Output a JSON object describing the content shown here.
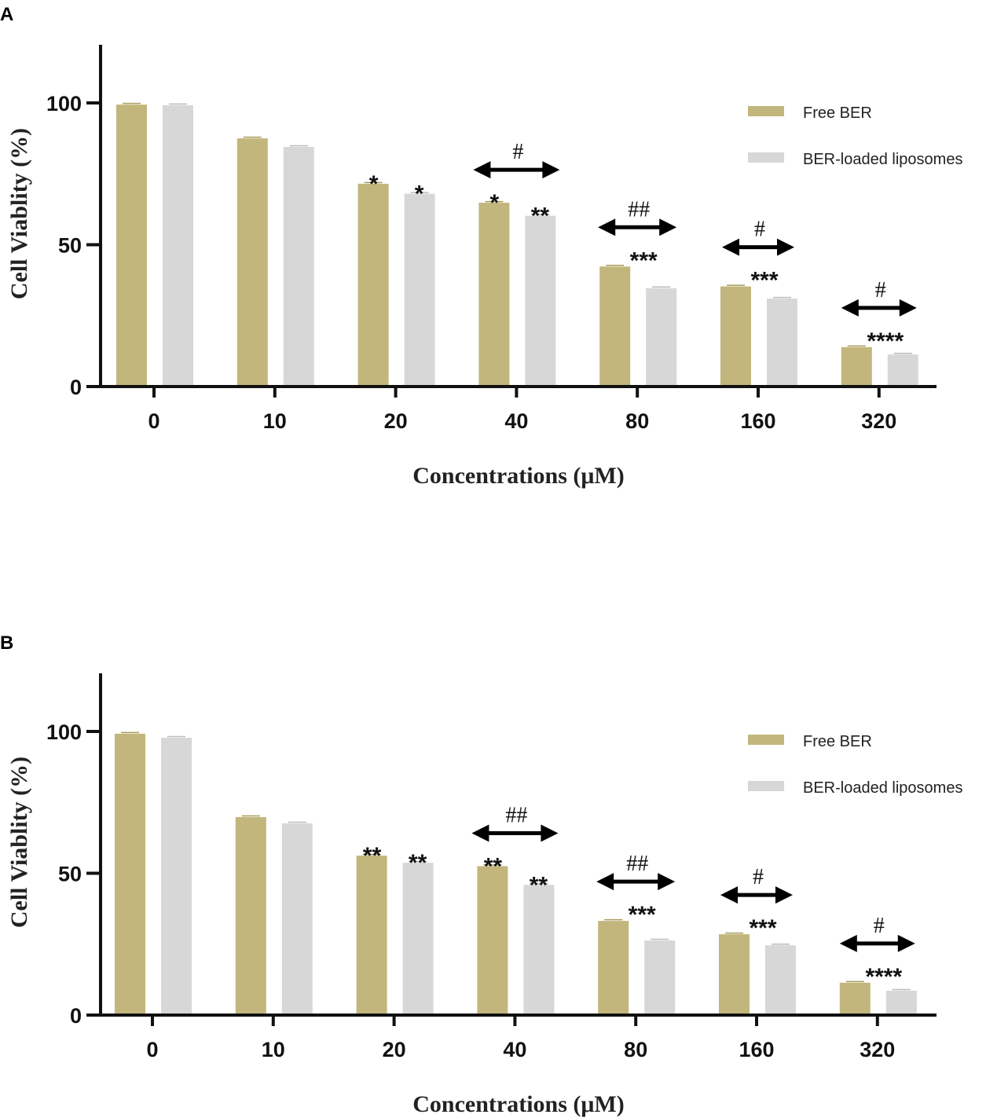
{
  "colors": {
    "free": "#c2b67c",
    "lipo": "#d7d7d7",
    "axis": "#111111"
  },
  "chart_data": [
    {
      "panel": "A",
      "type": "bar",
      "categories": [
        "0",
        "10",
        "20",
        "40",
        "80",
        "160",
        "320"
      ],
      "xlabel": "Concentrations (μM)",
      "ylabel": "Cell Viablity (%)",
      "ylim": [
        0,
        120
      ],
      "yticks": [
        "0",
        "50",
        "100"
      ],
      "legend_position": "top-right",
      "series": [
        {
          "name": "Free BER",
          "values": [
            99.4,
            87.5,
            71.5,
            64.8,
            42.3,
            35.3,
            13.9
          ]
        },
        {
          "name": "BER-loaded liposomes",
          "values": [
            99.2,
            84.5,
            68.0,
            60.2,
            34.7,
            31.0,
            11.3
          ]
        }
      ],
      "annotations": [
        {
          "free": "",
          "lipo": "",
          "hash": ""
        },
        {
          "free": "",
          "lipo": "",
          "hash": ""
        },
        {
          "free": "*",
          "lipo": "*",
          "hash": ""
        },
        {
          "free": "*",
          "lipo": "**",
          "hash": "#"
        },
        {
          "free": "",
          "lipo": "***",
          "hash": "##"
        },
        {
          "free": "",
          "lipo": "***",
          "hash": "#"
        },
        {
          "free": "",
          "lipo": "****",
          "hash": "#"
        }
      ]
    },
    {
      "panel": "B",
      "type": "bar",
      "categories": [
        "0",
        "10",
        "20",
        "40",
        "80",
        "160",
        "320"
      ],
      "xlabel": "Concentrations (μM)",
      "ylabel": "Cell Viablity (%)",
      "ylim": [
        0,
        120
      ],
      "yticks": [
        "0",
        "50",
        "100"
      ],
      "legend_position": "top-right",
      "series": [
        {
          "name": "Free BER",
          "values": [
            99.2,
            69.8,
            56.2,
            52.5,
            33.2,
            28.5,
            11.4
          ]
        },
        {
          "name": "BER-loaded liposomes",
          "values": [
            97.8,
            67.6,
            53.7,
            45.9,
            26.3,
            24.6,
            8.6
          ]
        }
      ],
      "annotations": [
        {
          "free": "",
          "lipo": "",
          "hash": ""
        },
        {
          "free": "",
          "lipo": "",
          "hash": ""
        },
        {
          "free": "**",
          "lipo": "**",
          "hash": ""
        },
        {
          "free": "**",
          "lipo": "**",
          "hash": "##"
        },
        {
          "free": "",
          "lipo": "***",
          "hash": "##"
        },
        {
          "free": "",
          "lipo": "***",
          "hash": "#"
        },
        {
          "free": "",
          "lipo": "****",
          "hash": "#"
        }
      ]
    }
  ]
}
